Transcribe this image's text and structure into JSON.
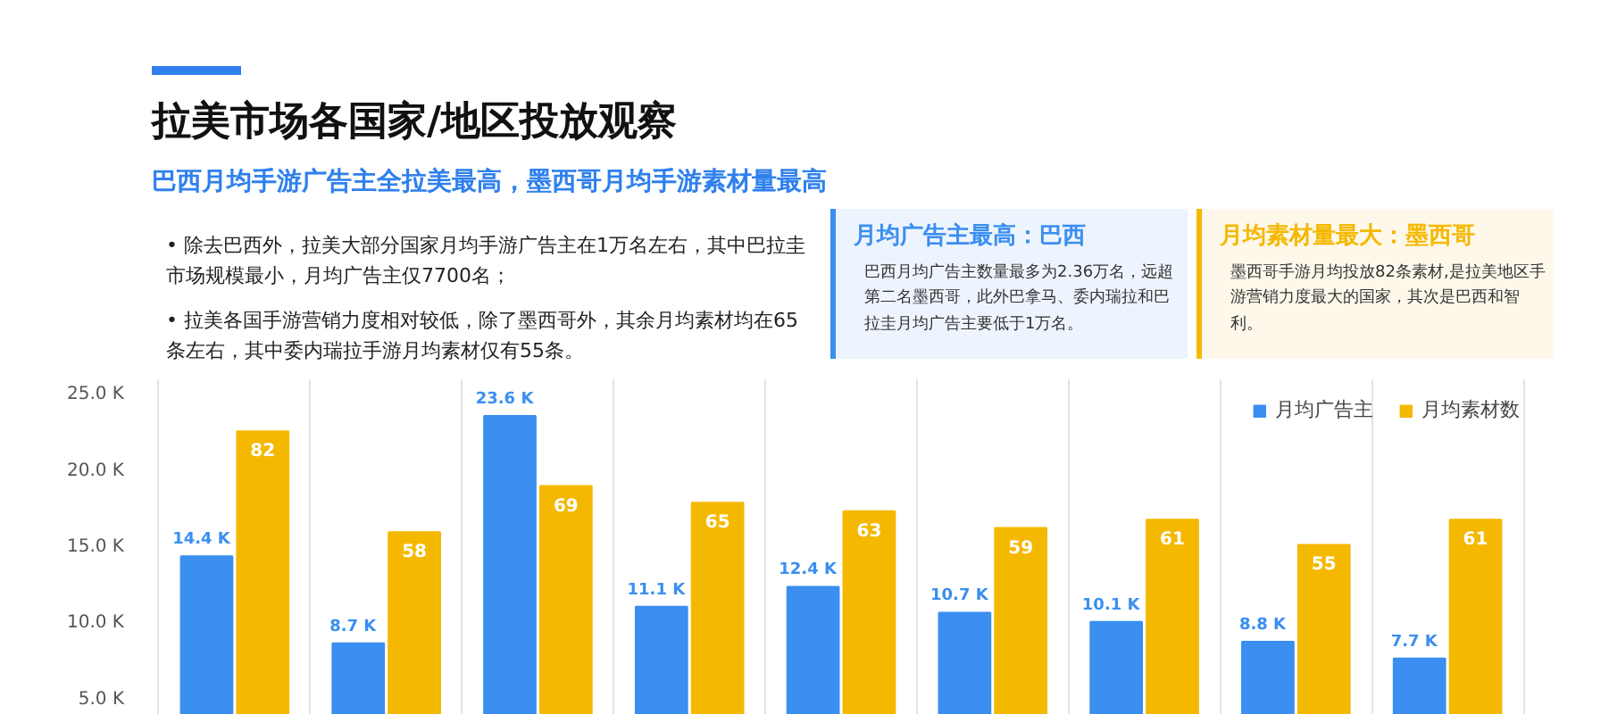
{
  "chart_data": {
    "type": "bar",
    "title": "拉美市场各国家/地区投放观察",
    "subtitle": "巴西月均手游广告主全拉美最高，墨西哥月均手游素材量最高",
    "annotations": [
      "•  除去巴西外，拉美大部分国家月均手游广告主在1万名左右，其中巴拉圭市场规模最小，月均广告主仅7700名；",
      "•  拉美各国手游营销力度相对较低，除了墨西哥外，其余月均素材均在65条左右，其中委内瑞拉手游月均素材仅有55条。",
      "月均广告主最高：巴西",
      "巴西月均广告主数量最多为2.36万名，远超第二名墨西哥，此外巴拿马、委内瑞拉和巴拉圭月均广告主要低于1万名。",
      "月均素材量最大：墨西哥",
      "墨西哥手游月均投放82条素材,是拉美地区手游营销力度最大的国家，其次是巴西和智利。"
    ],
    "categories": [
      null,
      null,
      null,
      null,
      null,
      null,
      null,
      null,
      null
    ],
    "series": [
      {
        "name": "月均广告主",
        "color": "#3a8ff0",
        "values": [
          14.4,
          8.7,
          23.6,
          11.1,
          12.4,
          10.7,
          10.1,
          8.8,
          7.7
        ],
        "value_labels": [
          "14.4 K",
          "8.7 K",
          "23.6 K",
          "11.1 K",
          "12.4 K",
          "10.7 K",
          "10.1 K",
          "8.8 K",
          "7.7 K"
        ]
      },
      {
        "name": "月均素材数",
        "color": "#f5b800",
        "axis": "y2",
        "values": [
          82,
          58,
          69,
          65,
          63,
          59,
          61,
          55,
          61
        ],
        "value_labels": [
          "82",
          "58",
          "69",
          "65",
          "63",
          "59",
          "61",
          "55",
          "61"
        ]
      }
    ],
    "ylim": [
      4,
      26
    ],
    "yticks": [
      {
        "value": 5,
        "label": "5.0 K"
      },
      {
        "value": 10,
        "label": "10.0 K"
      },
      {
        "value": 15,
        "label": "15.0 K"
      },
      {
        "value": 20,
        "label": "20.0 K"
      },
      {
        "value": 25,
        "label": "25.0 K"
      }
    ],
    "y2lim": [
      14.5,
      94.4
    ],
    "tick_labels": "y",
    "grid": "x",
    "legend": "top right"
  }
}
